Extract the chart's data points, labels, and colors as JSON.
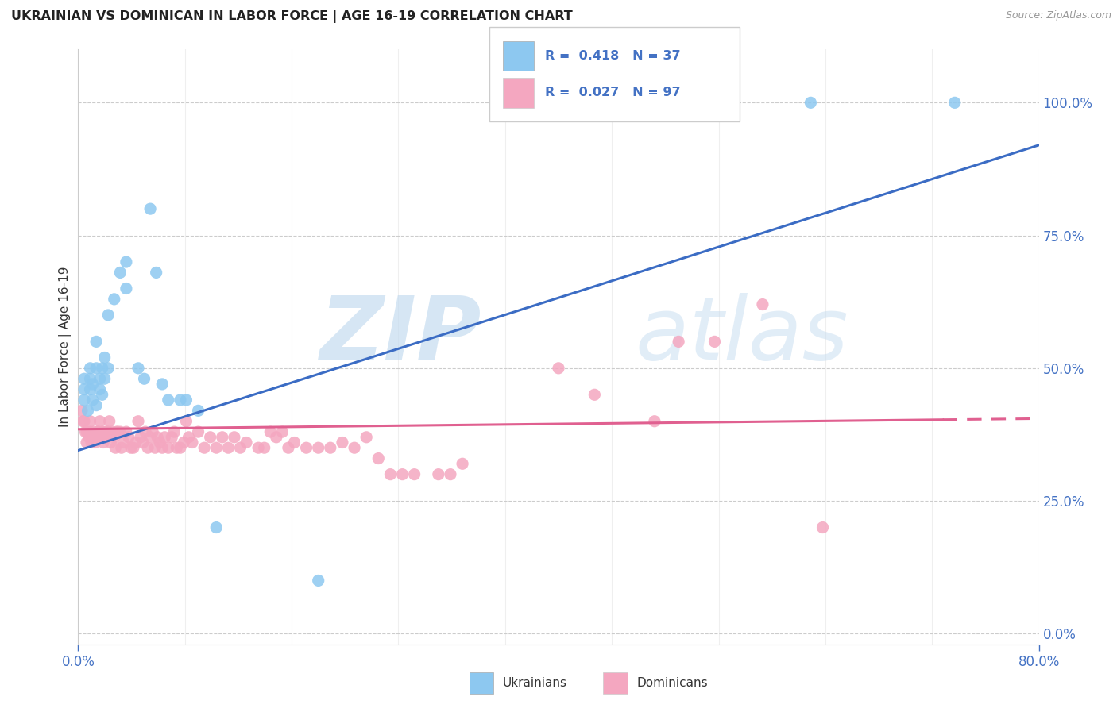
{
  "title": "UKRAINIAN VS DOMINICAN IN LABOR FORCE | AGE 16-19 CORRELATION CHART",
  "source": "Source: ZipAtlas.com",
  "ylabel": "In Labor Force | Age 16-19",
  "xlim": [
    0.0,
    0.8
  ],
  "ylim": [
    -0.02,
    1.1
  ],
  "ytick_vals": [
    0.0,
    0.25,
    0.5,
    0.75,
    1.0
  ],
  "ytick_labels": [
    "0.0%",
    "25.0%",
    "50.0%",
    "75.0%",
    "100.0%"
  ],
  "xtick_vals": [
    0.0,
    0.8
  ],
  "xtick_labels": [
    "0.0%",
    "80.0%"
  ],
  "ukrainian_R": "0.418",
  "ukrainian_N": "37",
  "dominican_R": "0.027",
  "dominican_N": "97",
  "ukrainian_color": "#8DC8F0",
  "dominican_color": "#F4A7C0",
  "trendline_ukr_color": "#3B6CC4",
  "trendline_dom_color": "#E06090",
  "ukr_trendline_x0": 0.0,
  "ukr_trendline_y0": 0.345,
  "ukr_trendline_x1": 0.8,
  "ukr_trendline_y1": 0.92,
  "dom_trendline_x0": 0.0,
  "dom_trendline_y0": 0.385,
  "dom_trendline_x1": 0.8,
  "dom_trendline_y1": 0.405,
  "ukrainian_x": [
    0.005,
    0.005,
    0.005,
    0.008,
    0.01,
    0.01,
    0.01,
    0.012,
    0.012,
    0.015,
    0.015,
    0.015,
    0.018,
    0.018,
    0.02,
    0.02,
    0.022,
    0.022,
    0.025,
    0.025,
    0.03,
    0.035,
    0.04,
    0.04,
    0.05,
    0.055,
    0.06,
    0.065,
    0.07,
    0.075,
    0.085,
    0.09,
    0.1,
    0.115,
    0.2,
    0.61,
    0.73
  ],
  "ukrainian_y": [
    0.44,
    0.46,
    0.48,
    0.42,
    0.46,
    0.48,
    0.5,
    0.44,
    0.47,
    0.43,
    0.5,
    0.55,
    0.46,
    0.48,
    0.45,
    0.5,
    0.48,
    0.52,
    0.5,
    0.6,
    0.63,
    0.68,
    0.65,
    0.7,
    0.5,
    0.48,
    0.8,
    0.68,
    0.47,
    0.44,
    0.44,
    0.44,
    0.42,
    0.2,
    0.1,
    1.0,
    1.0
  ],
  "dominican_x": [
    0.003,
    0.004,
    0.005,
    0.006,
    0.007,
    0.007,
    0.008,
    0.009,
    0.01,
    0.01,
    0.011,
    0.012,
    0.013,
    0.014,
    0.015,
    0.016,
    0.017,
    0.018,
    0.019,
    0.02,
    0.021,
    0.022,
    0.023,
    0.024,
    0.025,
    0.026,
    0.027,
    0.028,
    0.03,
    0.031,
    0.032,
    0.033,
    0.035,
    0.036,
    0.038,
    0.04,
    0.042,
    0.044,
    0.046,
    0.048,
    0.05,
    0.052,
    0.054,
    0.056,
    0.058,
    0.06,
    0.062,
    0.064,
    0.066,
    0.068,
    0.07,
    0.072,
    0.075,
    0.078,
    0.08,
    0.082,
    0.085,
    0.088,
    0.09,
    0.092,
    0.095,
    0.1,
    0.105,
    0.11,
    0.115,
    0.12,
    0.125,
    0.13,
    0.135,
    0.14,
    0.15,
    0.155,
    0.16,
    0.165,
    0.17,
    0.175,
    0.18,
    0.19,
    0.2,
    0.21,
    0.22,
    0.23,
    0.24,
    0.25,
    0.26,
    0.27,
    0.28,
    0.3,
    0.31,
    0.32,
    0.4,
    0.43,
    0.48,
    0.5,
    0.53,
    0.57,
    0.62
  ],
  "dominican_y": [
    0.42,
    0.4,
    0.4,
    0.38,
    0.38,
    0.36,
    0.38,
    0.37,
    0.38,
    0.4,
    0.36,
    0.37,
    0.38,
    0.36,
    0.37,
    0.38,
    0.38,
    0.4,
    0.37,
    0.38,
    0.36,
    0.38,
    0.37,
    0.38,
    0.38,
    0.4,
    0.36,
    0.38,
    0.37,
    0.35,
    0.38,
    0.38,
    0.38,
    0.35,
    0.36,
    0.38,
    0.37,
    0.35,
    0.35,
    0.36,
    0.4,
    0.37,
    0.36,
    0.38,
    0.35,
    0.37,
    0.38,
    0.35,
    0.37,
    0.36,
    0.35,
    0.37,
    0.35,
    0.37,
    0.38,
    0.35,
    0.35,
    0.36,
    0.4,
    0.37,
    0.36,
    0.38,
    0.35,
    0.37,
    0.35,
    0.37,
    0.35,
    0.37,
    0.35,
    0.36,
    0.35,
    0.35,
    0.38,
    0.37,
    0.38,
    0.35,
    0.36,
    0.35,
    0.35,
    0.35,
    0.36,
    0.35,
    0.37,
    0.33,
    0.3,
    0.3,
    0.3,
    0.3,
    0.3,
    0.32,
    0.5,
    0.45,
    0.4,
    0.55,
    0.55,
    0.62,
    0.2
  ],
  "background_color": "#ffffff",
  "grid_color": "#cccccc",
  "tick_color": "#4472C4",
  "title_color": "#222222",
  "ylabel_color": "#333333"
}
